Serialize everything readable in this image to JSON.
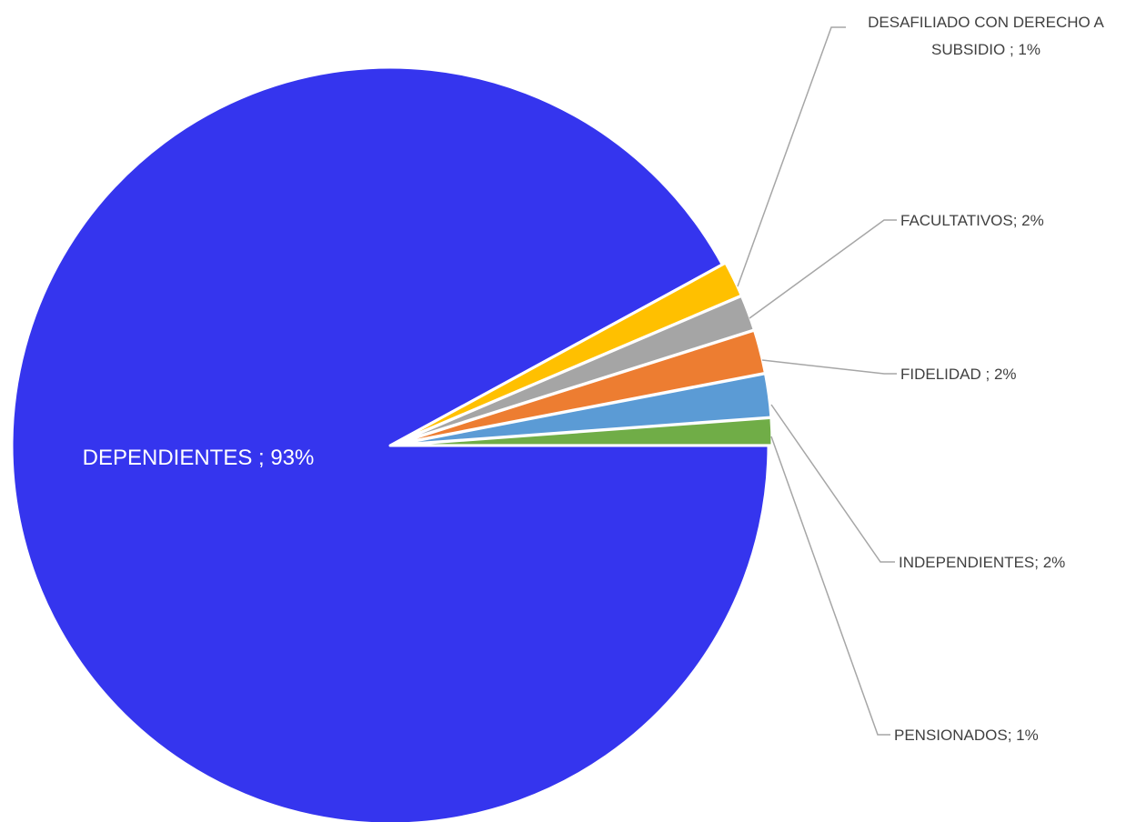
{
  "chart_data": {
    "type": "pie",
    "title": "",
    "slices": [
      {
        "name": "DEPENDIENTES",
        "value": 93,
        "label": "DEPENDIENTES ; 93%",
        "color": "#3535ee",
        "label_position": "inside"
      },
      {
        "name": "DESAFILIADO CON DERECHO A SUBSIDIO",
        "value": 1,
        "label_lines": [
          "DESAFILIADO CON DERECHO A",
          "SUBSIDIO ; 1%"
        ],
        "color": "#ffc000",
        "label_position": "outside"
      },
      {
        "name": "FACULTATIVOS",
        "value": 2,
        "label": "FACULTATIVOS; 2%",
        "color": "#a5a5a5",
        "label_position": "outside"
      },
      {
        "name": "FIDELIDAD",
        "value": 2,
        "label": "FIDELIDAD ; 2%",
        "color": "#ed7d31",
        "label_position": "outside"
      },
      {
        "name": "INDEPENDIENTES",
        "value": 2,
        "label": "INDEPENDIENTES; 2%",
        "color": "#5b9bd5",
        "label_position": "outside"
      },
      {
        "name": "PENSIONADOS",
        "value": 1,
        "label": "PENSIONADOS; 1%",
        "color": "#70ad47",
        "label_position": "outside"
      }
    ],
    "legend": "none"
  }
}
